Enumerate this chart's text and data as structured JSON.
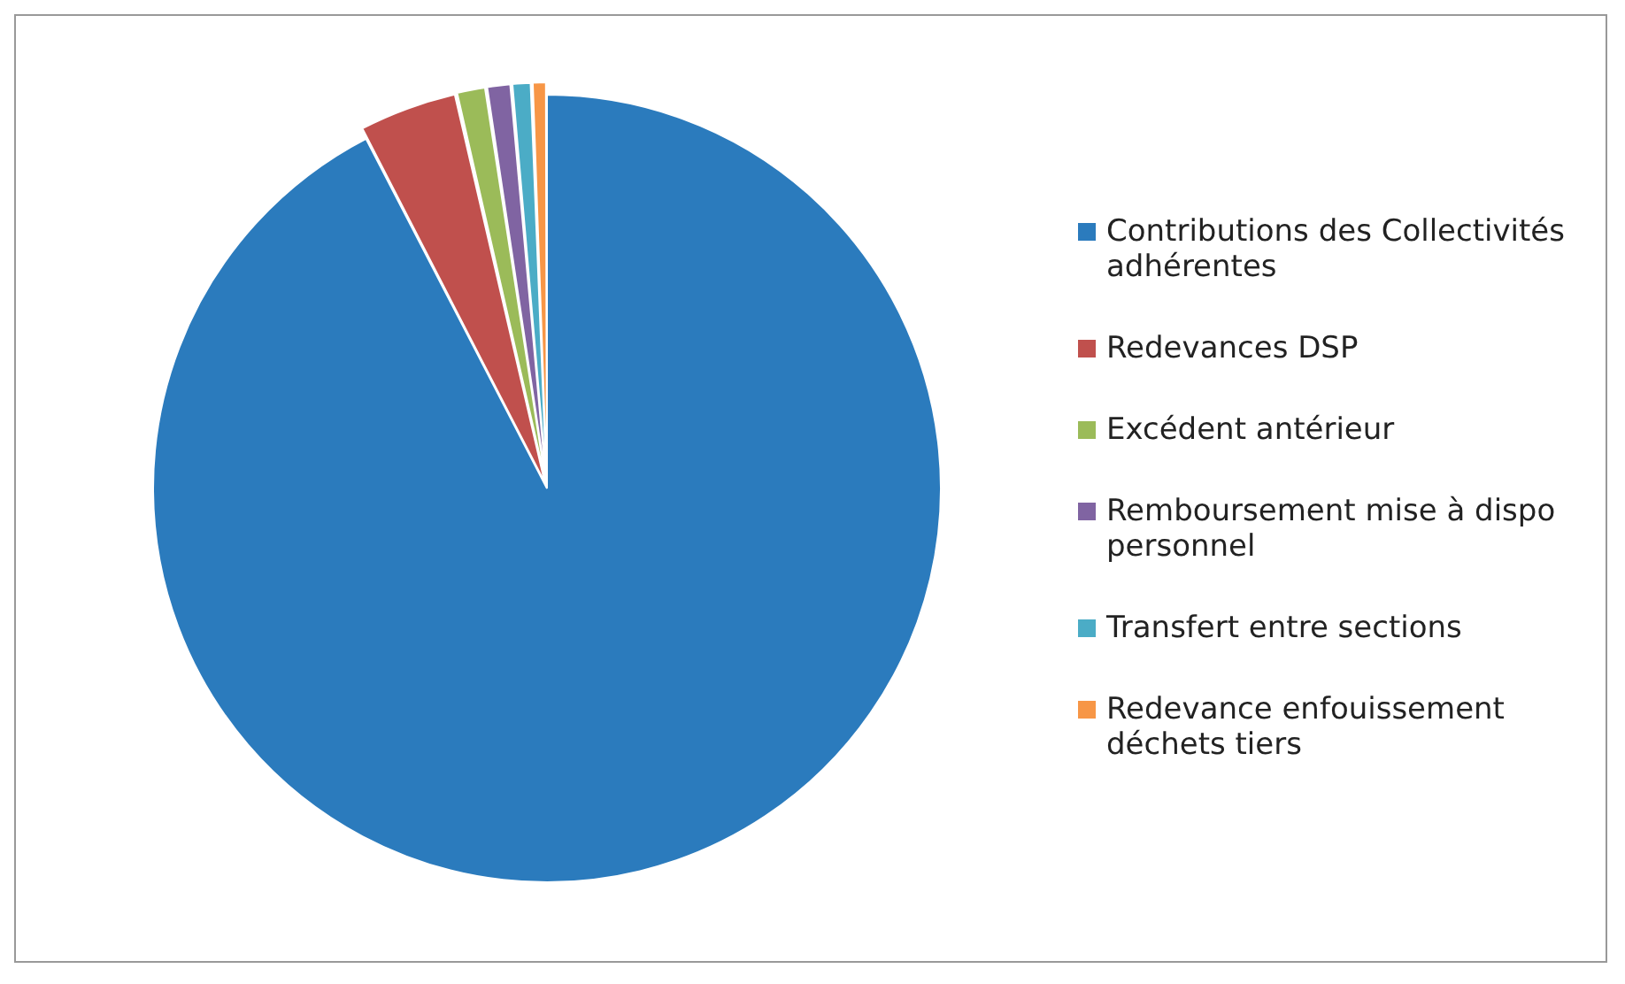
{
  "chart_data": {
    "type": "pie",
    "categories": [
      "Contributions des Collectivités adhérentes",
      "Redevances DSP",
      "Excédent antérieur",
      "Remboursement mise à dispo personnel",
      "Transfert entre sections",
      "Redevance enfouissement déchets tiers"
    ],
    "values": [
      92.4,
      4,
      1.2,
      1,
      0.8,
      0.6
    ],
    "colors": [
      "#2b7bbd",
      "#c0504d",
      "#9bbb59",
      "#8064a2",
      "#4bacc6",
      "#f79646"
    ],
    "legend": "right"
  }
}
